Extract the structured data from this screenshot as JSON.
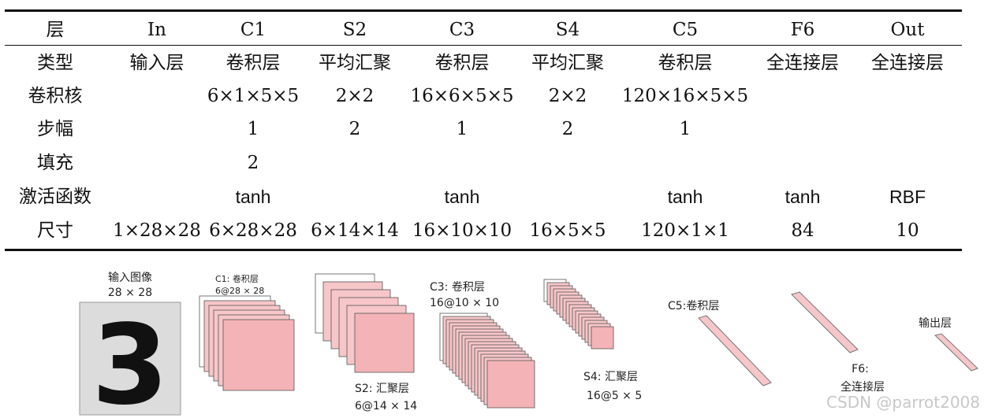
{
  "table": {
    "rows": [
      {
        "label": "层",
        "cells": [
          "In",
          "C1",
          "S2",
          "C3",
          "S4",
          "C5",
          "F6",
          "Out"
        ]
      },
      {
        "label": "类型",
        "cells": [
          "输入层",
          "卷积层",
          "平均汇聚",
          "卷积层",
          "平均汇聚",
          "卷积层",
          "全连接层",
          "全连接层"
        ]
      },
      {
        "label": "卷积核",
        "cells": [
          "",
          "6×1×5×5",
          "2×2",
          "16×6×5×5",
          "2×2",
          "120×16×5×5",
          "",
          ""
        ]
      },
      {
        "label": "步幅",
        "cells": [
          "",
          "1",
          "2",
          "1",
          "2",
          "1",
          "",
          ""
        ]
      },
      {
        "label": "填充",
        "cells": [
          "",
          "2",
          "",
          "",
          "",
          "",
          "",
          ""
        ]
      },
      {
        "label": "激活函数",
        "cells": [
          "",
          "tanh",
          "",
          "tanh",
          "",
          "tanh",
          "tanh",
          "RBF"
        ]
      },
      {
        "label": "尺寸",
        "cells": [
          "1×28×28",
          "6×28×28",
          "6×14×14",
          "16×10×10",
          "16×5×5",
          "120×1×1",
          "84",
          "10"
        ]
      }
    ]
  },
  "diagram": {
    "input_title": "输入图像",
    "input_size": "28 × 28",
    "input_digit": "3",
    "c1_title": "C1: 卷积层",
    "c1_size": "6@28 × 28",
    "s2_title": "S2: 汇聚层",
    "s2_size": "6@14 × 14",
    "c3_title": "C3: 卷积层",
    "c3_size": "16@10 × 10",
    "s4_title": "S4: 汇聚层",
    "s4_size": "16@5 × 5",
    "c5_title": "C5:卷积层",
    "f6_title": "F6:",
    "f6_sub": "全连接层",
    "out_title": "输出层",
    "watermark": "CSDN @parrot2008"
  },
  "colors": {
    "map_fill": "#f7c6c8",
    "map_front": "#f4b3b7",
    "map_stroke": "#555555",
    "input_bg": "#dcdcdc",
    "rule": "#111111"
  }
}
